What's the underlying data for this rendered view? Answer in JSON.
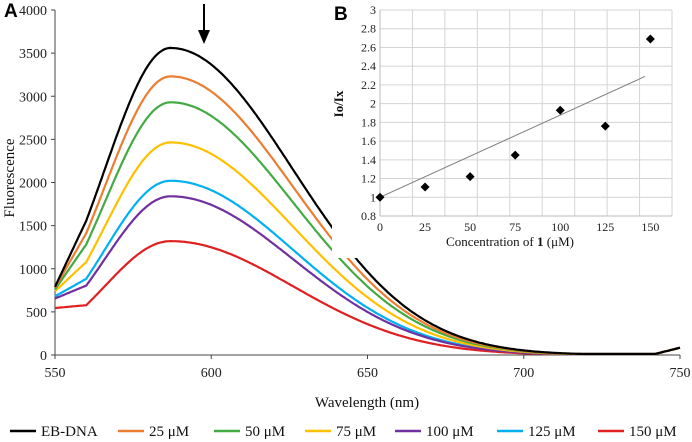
{
  "chart_data": [
    {
      "panel": "A",
      "type": "line",
      "xlabel": "Wavelength (nm)",
      "ylabel": "Fluorescence",
      "xlim": [
        550,
        750
      ],
      "ylim": [
        0,
        4000
      ],
      "xticks": [
        "550",
        "600",
        "650",
        "700",
        "750"
      ],
      "yticks": [
        "0",
        "500",
        "1000",
        "1500",
        "2000",
        "2500",
        "3000",
        "3500",
        "4000"
      ],
      "annotation": "downward arrow at emission maximum (~587 nm) indicating quenching",
      "series": [
        {
          "name": "EB-DNA",
          "color": "#000000",
          "peak": 3560,
          "peak_x": 587,
          "start": 790
        },
        {
          "name": "25 μM",
          "color": "#ed7d31",
          "peak": 3230,
          "peak_x": 587,
          "start": 780
        },
        {
          "name": "50 μM",
          "color": "#44aa44",
          "peak": 2930,
          "peak_x": 587,
          "start": 760
        },
        {
          "name": "75 μM",
          "color": "#ffc000",
          "peak": 2465,
          "peak_x": 587,
          "start": 740
        },
        {
          "name": "100 μM",
          "color": "#7030a0",
          "peak": 1840,
          "peak_x": 587,
          "start": 655
        },
        {
          "name": "125 μM",
          "color": "#00b0f0",
          "peak": 2020,
          "peak_x": 587,
          "start": 680
        },
        {
          "name": "150 μM",
          "color": "#e02020",
          "peak": 1320,
          "peak_x": 587,
          "start": 545
        }
      ]
    },
    {
      "panel": "B",
      "type": "scatter",
      "xlabel_parts": [
        "Concentration of ",
        "1",
        " (μM)"
      ],
      "ylabel": "Io/Ix",
      "xlim": [
        0,
        162
      ],
      "ylim": [
        0.8,
        3
      ],
      "xticks": [
        "0",
        "25",
        "50",
        "75",
        "100",
        "125",
        "150"
      ],
      "yticks": [
        "0.8",
        "1",
        "1.2",
        "1.4",
        "1.6",
        "1.8",
        "2",
        "2.2",
        "2.4",
        "2.6",
        "2.8",
        "3"
      ],
      "x": [
        0,
        25,
        50,
        75,
        100,
        125,
        150
      ],
      "y": [
        1.0,
        1.11,
        1.22,
        1.45,
        1.93,
        1.76,
        2.69
      ],
      "trendline": {
        "x": [
          0,
          147
        ],
        "y": [
          1.0,
          2.29
        ]
      }
    }
  ],
  "labels": {
    "panel_a": "A",
    "panel_b": "B"
  }
}
